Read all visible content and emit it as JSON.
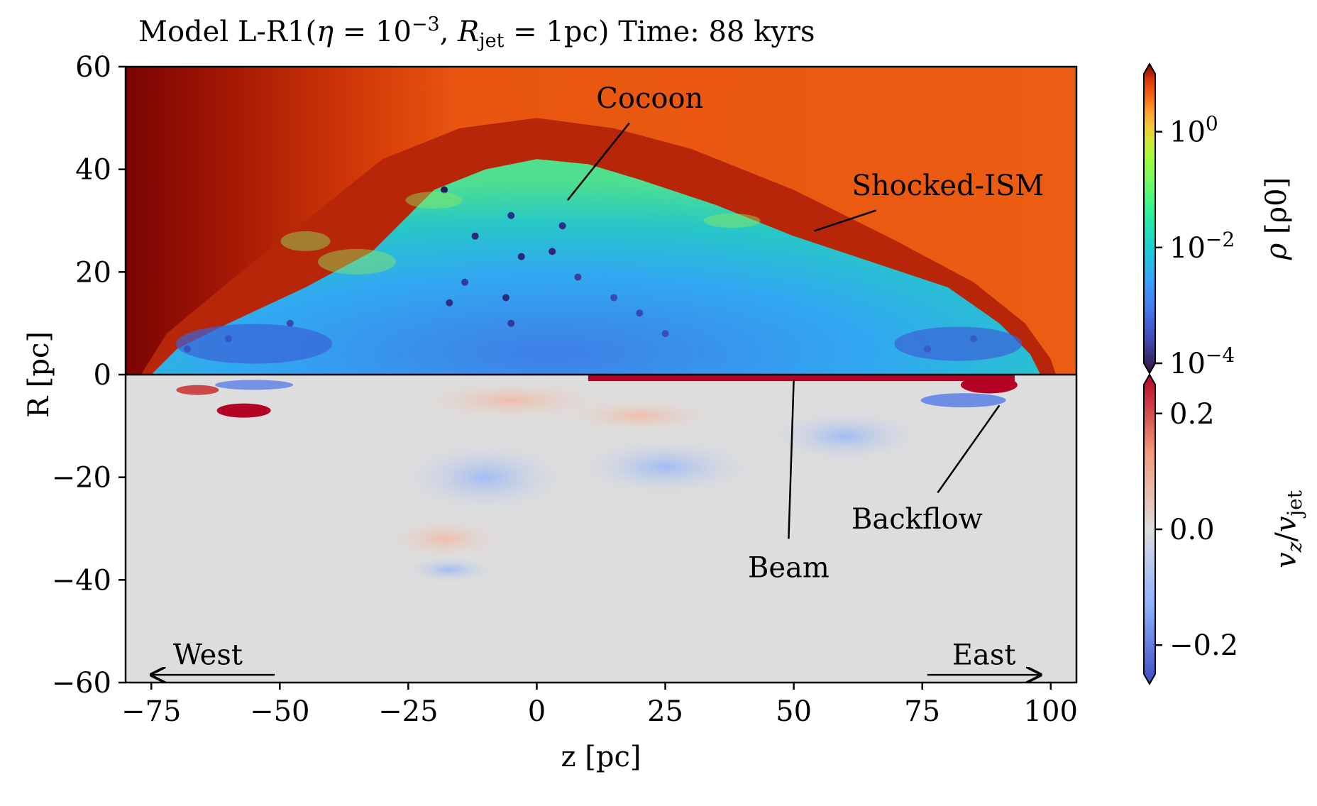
{
  "title": {
    "model": "Model L-R1(",
    "eta_symbol": "η",
    "eta_eq": " = 10",
    "eta_exp": "−3",
    "sep": ", ",
    "R_symbol": "R",
    "R_sub": "jet",
    "R_eq": " = 1pc) Time: 88 kyrs"
  },
  "chart_data": {
    "type": "heatmap",
    "xlabel": "z [pc]",
    "ylabel": "R [pc]",
    "xlim": [
      -80,
      105
    ],
    "ylim": [
      -60,
      60
    ],
    "x_ticks": [
      -75,
      -50,
      -25,
      0,
      25,
      50,
      75,
      100
    ],
    "x_tick_labels": [
      "−75",
      "−50",
      "−25",
      "0",
      "25",
      "50",
      "75",
      "100"
    ],
    "y_ticks": [
      60,
      40,
      20,
      0,
      -20,
      -40,
      -60
    ],
    "y_tick_labels": [
      "60",
      "40",
      "20",
      "0",
      "−20",
      "−40",
      "−60"
    ],
    "grid": false,
    "upper_panel": {
      "quantity": "density",
      "colorbar_label_symbol": "ρ",
      "colorbar_label_unit": "[ρ0]",
      "scale": "log",
      "range": [
        0.0001,
        10
      ],
      "colorbar_ticks": [
        {
          "value": 1,
          "base": "10",
          "exp": "0"
        },
        {
          "value": 0.01,
          "base": "10",
          "exp": "−2"
        },
        {
          "value": 0.0001,
          "base": "10",
          "exp": "−4"
        }
      ],
      "colormap": "turbo",
      "ambient_density": 1.0,
      "cocoon_outline": [
        [
          -75,
          0
        ],
        [
          -70,
          5
        ],
        [
          -60,
          10
        ],
        [
          -45,
          17
        ],
        [
          -32,
          24
        ],
        [
          -20,
          36
        ],
        [
          -10,
          40
        ],
        [
          0,
          42
        ],
        [
          10,
          41
        ],
        [
          20,
          38
        ],
        [
          35,
          33
        ],
        [
          50,
          27
        ],
        [
          65,
          22
        ],
        [
          80,
          17
        ],
        [
          90,
          10
        ],
        [
          96,
          4
        ],
        [
          98,
          0
        ]
      ],
      "shock_outline": [
        [
          -77,
          0
        ],
        [
          -72,
          8
        ],
        [
          -60,
          18
        ],
        [
          -45,
          30
        ],
        [
          -30,
          42
        ],
        [
          -15,
          48
        ],
        [
          0,
          50
        ],
        [
          15,
          48
        ],
        [
          30,
          44
        ],
        [
          50,
          36
        ],
        [
          70,
          26
        ],
        [
          85,
          18
        ],
        [
          95,
          10
        ],
        [
          100,
          3
        ],
        [
          101,
          0
        ]
      ]
    },
    "lower_panel": {
      "quantity": "axial velocity",
      "colorbar_label_v": "v",
      "colorbar_label_sub": "z",
      "colorbar_label_sep": "/",
      "colorbar_label_den": "v",
      "colorbar_label_den_sub": "jet",
      "scale": "linear",
      "range": [
        -0.25,
        0.25
      ],
      "colorbar_ticks": [
        {
          "value": 0.2,
          "label": "0.2"
        },
        {
          "value": 0.0,
          "label": "0.0"
        },
        {
          "value": -0.2,
          "label": "−0.2"
        }
      ],
      "colormap": "coolwarm",
      "ambient_velocity": 0.0
    },
    "annotations": [
      {
        "text": "Cocoon",
        "line_from": [
          18,
          49
        ],
        "line_to": [
          6,
          34
        ]
      },
      {
        "text": "Shocked-ISM",
        "line_from": [
          66,
          32
        ],
        "line_to": [
          54,
          28
        ]
      },
      {
        "text": "Beam",
        "line_from": [
          49,
          -32
        ],
        "line_to": [
          50,
          -1
        ]
      },
      {
        "text": "Backflow",
        "line_from": [
          78,
          -23
        ],
        "line_to": [
          90,
          -6
        ]
      },
      {
        "text": "West",
        "direction": "left"
      },
      {
        "text": "East",
        "direction": "right"
      }
    ]
  }
}
